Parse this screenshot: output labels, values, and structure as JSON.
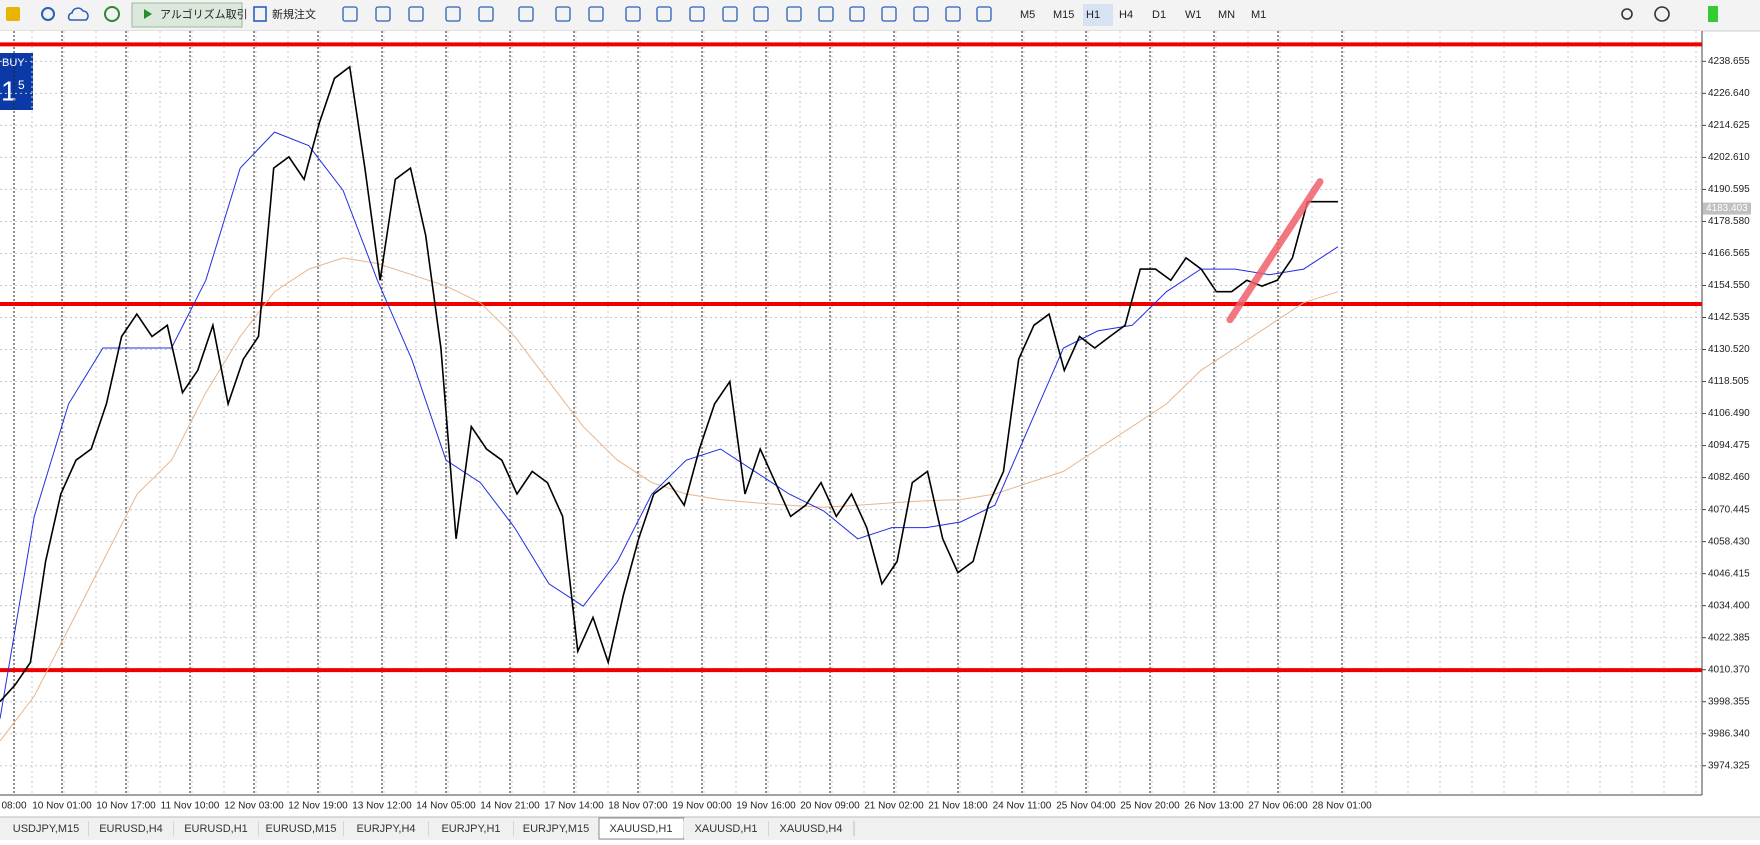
{
  "toolbar": {
    "buttons": [
      "アルゴリズム取引",
      "新規注文"
    ],
    "timeframes": [
      "M5",
      "M15",
      "H1",
      "H4",
      "D1",
      "W1",
      "MN",
      "M1"
    ],
    "active_timeframe": "H1"
  },
  "overlay": {
    "side": "BUY",
    "price_big": "1",
    "price_small": "5"
  },
  "chart_data": {
    "type": "line",
    "x_labels": [
      "08:00",
      "10 Nov 01:00",
      "10 Nov 17:00",
      "11 Nov 10:00",
      "12 Nov 03:00",
      "12 Nov 19:00",
      "13 Nov 12:00",
      "14 Nov 05:00",
      "14 Nov 21:00",
      "17 Nov 14:00",
      "18 Nov 07:00",
      "19 Nov 00:00",
      "19 Nov 16:00",
      "20 Nov 09:00",
      "21 Nov 02:00",
      "21 Nov 18:00",
      "24 Nov 11:00",
      "25 Nov 04:00",
      "25 Nov 20:00",
      "26 Nov 13:00",
      "27 Nov 06:00",
      "28 Nov 01:00"
    ],
    "series": [
      {
        "color": "#000000",
        "values": [
          3998.4,
          4004.7,
          4013.1,
          4051,
          4076.3,
          4089,
          4093.2,
          4110.1,
          4135.4,
          4143.8,
          4135.4,
          4139.6,
          4114.3,
          4122.7,
          4139.6,
          4110.1,
          4126.9,
          4135.4,
          4198.6,
          4202.8,
          4194.4,
          4215.5,
          4232.3,
          4236.6,
          4198.6,
          4156.5,
          4194.4,
          4198.6,
          4173.3,
          4131.1,
          4059.5,
          4101.6,
          4093.2,
          4089,
          4076.3,
          4084.8,
          4080.6,
          4067.9,
          4017.3,
          4030,
          4013.1,
          4038.4,
          4059.5,
          4076.3,
          4080.6,
          4072.1,
          4093.2,
          4110.1,
          4118.5,
          4076.3,
          4093.2,
          4080.6,
          4067.9,
          4072.1,
          4080.6,
          4067.9,
          4076.3,
          4063.7,
          4042.6,
          4051,
          4080.6,
          4084.8,
          4059.5,
          4046.8,
          4051,
          4072.1,
          4084.8,
          4126.9,
          4139.6,
          4143.8,
          4122.7,
          4135.4,
          4131.1,
          4135.4,
          4139.6,
          4160.7,
          4160.7,
          4156.5,
          4164.9,
          4160.7,
          4152.2,
          4152.2,
          4156.5,
          4154.3,
          4156.5,
          4164.9,
          4186,
          4186,
          4186
        ]
      },
      {
        "color": "#1f2fe0",
        "values": [
          3992,
          4067.9,
          4110.1,
          4131.1,
          4131.1,
          4131.1,
          4156.5,
          4198.6,
          4212.1,
          4207,
          4190.2,
          4156.5,
          4126.9,
          4089,
          4080.6,
          4063.7,
          4042.6,
          4034.2,
          4051,
          4076.3,
          4089,
          4093.2,
          4084.8,
          4076.3,
          4070,
          4059.5,
          4063.7,
          4063.7,
          4065.8,
          4072.1,
          4101.6,
          4131.1,
          4137.5,
          4139.6,
          4152.2,
          4160.7,
          4160.7,
          4158.6,
          4160.7,
          4169.1
        ]
      },
      {
        "color": "#e8b58c",
        "values": [
          3983.6,
          4000.5,
          4025.8,
          4051,
          4076.3,
          4089,
          4114.3,
          4135.4,
          4152.2,
          4160.7,
          4164.9,
          4162.8,
          4158.6,
          4154.3,
          4148.1,
          4135.4,
          4118.5,
          4101.6,
          4089,
          4080.6,
          4076.3,
          4074.2,
          4073,
          4072.1,
          4071.3,
          4072.1,
          4073,
          4073.8,
          4074.2,
          4076.3,
          4080.6,
          4084.8,
          4093.2,
          4101.6,
          4110.1,
          4122.7,
          4131.1,
          4139.6,
          4148.1,
          4152.2
        ]
      }
    ],
    "ylim": [
      3963.36,
      4250.04
    ],
    "yticks": [
      4238.655,
      {
        "value": 4226.64,
        "label": "4226.640"
      },
      4214.625,
      {
        "value": 4202.61,
        "label": "4202.610"
      },
      4190.595,
      {
        "value": 4178.58,
        "label": "4178.580"
      },
      4166.565,
      {
        "value": 4154.55,
        "label": "4154.550"
      },
      4142.535,
      {
        "value": 4130.52,
        "label": "4130.520"
      },
      4118.505,
      {
        "value": 4106.49,
        "label": "4106.490"
      },
      4094.475,
      {
        "value": 4082.46,
        "label": "4082.460"
      },
      4070.445,
      {
        "value": 4058.43,
        "label": "4058.430"
      },
      4046.415,
      {
        "value": 4034.4,
        "label": "4034.400"
      },
      4022.385,
      {
        "value": 4010.37,
        "label": "4010.370"
      },
      3998.355,
      {
        "value": 3986.34,
        "label": "3986.340"
      },
      3974.325
    ],
    "grid": true,
    "levels": [
      {
        "value": 4245,
        "color": "#ee0000"
      },
      {
        "value": 4147.6,
        "color": "#ee0000"
      },
      {
        "value": 4010.2,
        "color": "#ee0000"
      }
    ],
    "trendline": {
      "values": [
        4141.7,
        4193.5
      ],
      "color": "#f0606a"
    },
    "current_price": 4183.403
  },
  "tabs": [
    "USDJPY,M15",
    "EURUSD,H4",
    "EURUSD,H1",
    "EURUSD,M15",
    "EURJPY,H4",
    "EURJPY,H1",
    "EURJPY,M15",
    "XAUUSD,H1",
    "XAUUSD,H1",
    "XAUUSD,H4"
  ],
  "active_tab": 7
}
